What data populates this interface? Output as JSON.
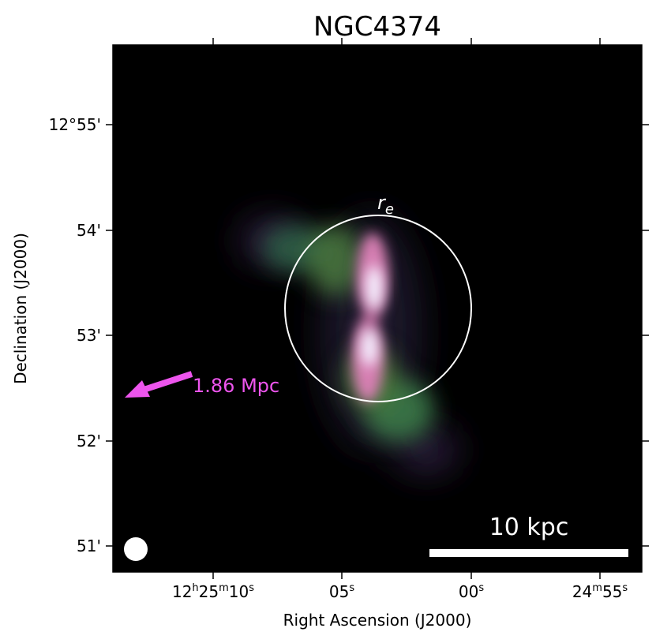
{
  "title": "NGC4374",
  "x_axis": {
    "label": "Right Ascension (J2000)",
    "ticks": [
      {
        "main": "12",
        "sup1": "h",
        "mid": "25",
        "sup2": "m",
        "end": "10",
        "sup3": "s"
      },
      {
        "main": "05",
        "sup": "s"
      },
      {
        "main": "00",
        "sup": "s"
      },
      {
        "main": "24",
        "sup1": "m",
        "mid": "55",
        "sup2": "s"
      }
    ]
  },
  "y_axis": {
    "label": "Declination (J2000)",
    "ticks": [
      "12°55'",
      "54'",
      "53'",
      "52'",
      "51'"
    ]
  },
  "annotations": {
    "circle_label_main": "r",
    "circle_label_sub": "e",
    "distance_text": "1.86 Mpc",
    "distance_color": "#ee55ee",
    "scalebar_label": "10 kpc"
  },
  "colors": {
    "background": "#000000",
    "circle": "#ffffff",
    "emission_core": "#f4f0ff",
    "emission_pink": "#e886c4",
    "emission_green": "#3f7a4c",
    "emission_purple": "#6a4a86"
  }
}
